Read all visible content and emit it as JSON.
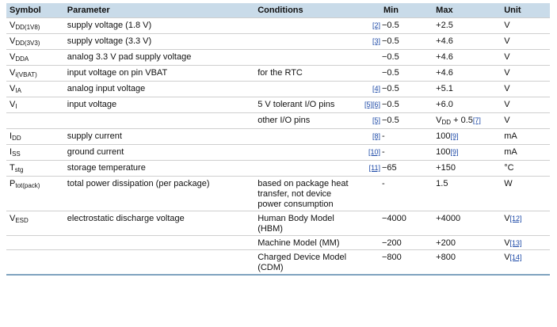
{
  "table": {
    "headers": {
      "symbol": "Symbol",
      "parameter": "Parameter",
      "conditions": "Conditions",
      "min": "Min",
      "max": "Max",
      "unit": "Unit"
    },
    "rows": [
      {
        "sym": "V",
        "sub": "DD(1V8)",
        "param": "supply voltage (1.8 V)",
        "cond": "",
        "fn": "[2]",
        "min": "−0.5",
        "max": "+2.5",
        "max_fn": "",
        "unit": "V",
        "unit_fn": ""
      },
      {
        "sym": "V",
        "sub": "DD(3V3)",
        "param": "supply voltage (3.3 V)",
        "cond": "",
        "fn": "[3]",
        "min": "−0.5",
        "max": "+4.6",
        "max_fn": "",
        "unit": "V",
        "unit_fn": ""
      },
      {
        "sym": "V",
        "sub": "DDA",
        "param": "analog 3.3 V pad supply voltage",
        "cond": "",
        "fn": "",
        "min": "−0.5",
        "max": "+4.6",
        "max_fn": "",
        "unit": "V",
        "unit_fn": ""
      },
      {
        "sym": "V",
        "sub": "i(VBAT)",
        "param": "input voltage on pin VBAT",
        "cond": "for the RTC",
        "fn": "",
        "min": "−0.5",
        "max": "+4.6",
        "max_fn": "",
        "unit": "V",
        "unit_fn": ""
      },
      {
        "sym": "V",
        "sub": "IA",
        "param": "analog input voltage",
        "cond": "",
        "fn": "[4]",
        "min": "−0.5",
        "max": "+5.1",
        "max_fn": "",
        "unit": "V",
        "unit_fn": ""
      },
      {
        "sym": "V",
        "sub": "I",
        "param": "input voltage",
        "cond": "5 V tolerant I/O pins",
        "fn": "[5][6]",
        "min": "−0.5",
        "max": "+6.0",
        "max_fn": "",
        "unit": "V",
        "unit_fn": ""
      },
      {
        "sym": "",
        "sub": "",
        "param": "",
        "cond": "other I/O pins",
        "fn": "[5]",
        "min": "−0.5",
        "max": "V",
        "max_sub": "DD",
        "max_tail": " + 0.5",
        "max_fn": "[7]",
        "unit": "V",
        "unit_fn": ""
      },
      {
        "sym": "I",
        "sub": "DD",
        "param": "supply current",
        "cond": "",
        "fn": "[8]",
        "min": "-",
        "max": "100",
        "max_fn": "[9]",
        "unit": "mA",
        "unit_fn": ""
      },
      {
        "sym": "I",
        "sub": "SS",
        "param": "ground current",
        "cond": "",
        "fn": "[10]",
        "min": "-",
        "max": "100",
        "max_fn": "[9]",
        "unit": "mA",
        "unit_fn": ""
      },
      {
        "sym": "T",
        "sub": "stg",
        "param": "storage temperature",
        "cond": "",
        "fn": "[11]",
        "min": "−65",
        "max": "+150",
        "max_fn": "",
        "unit": "°C",
        "unit_fn": ""
      },
      {
        "sym": "P",
        "sub": "tot(pack)",
        "param": "total power dissipation (per package)",
        "cond": "based on package heat transfer, not device power consumption",
        "fn": "",
        "min": "-",
        "max": "1.5",
        "max_fn": "",
        "unit": "W",
        "unit_fn": ""
      },
      {
        "sym": "V",
        "sub": "ESD",
        "param": "electrostatic discharge voltage",
        "cond": "Human Body Model (HBM)",
        "fn": "",
        "min": "−4000",
        "max": "+4000",
        "max_fn": "",
        "unit": "V",
        "unit_fn": "[12]"
      },
      {
        "sym": "",
        "sub": "",
        "param": "",
        "cond": "Machine Model (MM)",
        "fn": "",
        "min": "−200",
        "max": "+200",
        "max_fn": "",
        "unit": "V",
        "unit_fn": "[13]"
      },
      {
        "sym": "",
        "sub": "",
        "param": "",
        "cond": "Charged Device Model (CDM)",
        "fn": "",
        "min": "−800",
        "max": "+800",
        "max_fn": "",
        "unit": "V",
        "unit_fn": "[14]"
      }
    ]
  }
}
